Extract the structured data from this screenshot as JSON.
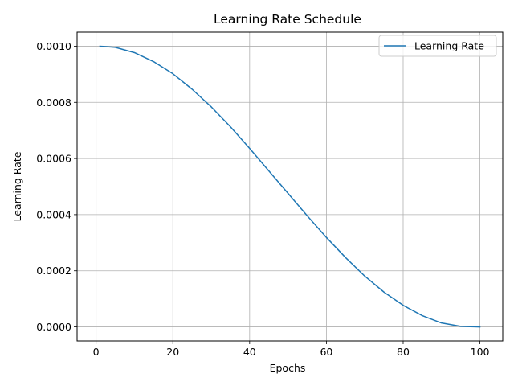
{
  "chart_data": {
    "type": "line",
    "title": "Learning Rate Schedule",
    "xlabel": "Epochs",
    "ylabel": "Learning Rate",
    "xlim": [
      -4.95,
      105.95
    ],
    "ylim": [
      -5e-05,
      0.00105
    ],
    "xticks": [
      0,
      20,
      40,
      60,
      80,
      100
    ],
    "xtick_labels": [
      "0",
      "20",
      "40",
      "60",
      "80",
      "100"
    ],
    "yticks": [
      0.0,
      0.0002,
      0.0004,
      0.0006,
      0.0008,
      0.001
    ],
    "ytick_labels": [
      "0.0000",
      "0.0002",
      "0.0004",
      "0.0006",
      "0.0008",
      "0.0010"
    ],
    "grid": true,
    "legend_position": "top-right",
    "series": [
      {
        "name": "Learning Rate",
        "color": "#1f77b4",
        "x": [
          1,
          5,
          10,
          15,
          20,
          25,
          30,
          35,
          40,
          45,
          50,
          55,
          60,
          65,
          70,
          75,
          80,
          85,
          90,
          95,
          100
        ],
        "y": [
          0.001,
          0.000996,
          0.000977,
          0.000945,
          0.000902,
          0.000847,
          0.000784,
          0.000713,
          0.000636,
          0.000556,
          0.000476,
          0.000396,
          0.000319,
          0.000247,
          0.000181,
          0.000124,
          7.7e-05,
          4e-05,
          1.4e-05,
          2e-06,
          0.0
        ]
      }
    ]
  }
}
